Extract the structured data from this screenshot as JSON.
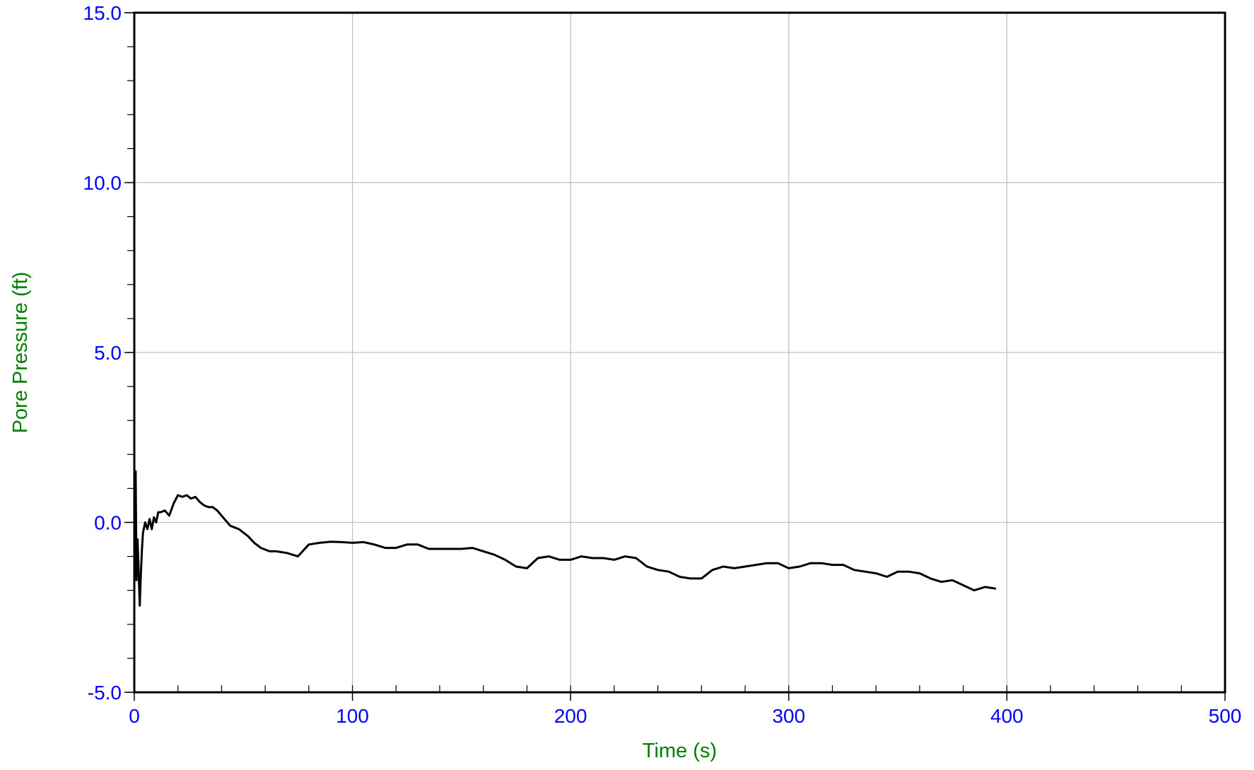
{
  "chart_data": {
    "type": "line",
    "title": "",
    "xlabel": "Time (s)",
    "ylabel": "Pore Pressure (ft)",
    "xlim": [
      0,
      500
    ],
    "ylim": [
      -5.0,
      15.0
    ],
    "x_ticks": [
      0,
      100,
      200,
      300,
      400,
      500
    ],
    "x_tick_labels": [
      "0",
      "100",
      "200",
      "300",
      "400",
      "500"
    ],
    "y_ticks": [
      -5.0,
      0.0,
      5.0,
      10.0,
      15.0
    ],
    "y_tick_labels": [
      "-5.0",
      "0.0",
      "5.0",
      "10.0",
      "15.0"
    ],
    "x_minor_step": 20,
    "y_minor_step": 1.0,
    "grid": true,
    "colors": {
      "tick_label": "#0000ff",
      "axis_label": "#008000",
      "series": "#000000",
      "grid": "#c0c0c0",
      "frame": "#000000"
    },
    "series": [
      {
        "x": [
          0,
          0.3,
          0.6,
          1.0,
          1.5,
          2.0,
          2.5,
          3.0,
          3.5,
          4.0,
          5.0,
          6.0,
          7.0,
          8.0,
          9.0,
          10.0,
          11.0,
          12.0,
          14.0,
          16.0,
          18.0,
          20.0,
          22.0,
          24.0,
          26.0,
          28.0,
          30.0,
          32.0,
          34.0,
          36.0,
          38.0,
          40.0,
          42.0,
          44.0,
          46.0,
          48.0,
          50.0,
          52.0,
          55.0,
          58.0,
          60.0,
          62.0,
          65.0,
          70.0,
          75.0,
          80.0,
          85.0,
          90.0,
          95.0,
          100.0,
          105.0,
          110.0,
          115.0,
          120.0,
          125.0,
          130.0,
          135.0,
          140.0,
          145.0,
          150.0,
          155.0,
          160.0,
          165.0,
          170.0,
          175.0,
          180.0,
          185.0,
          190.0,
          195.0,
          200.0,
          205.0,
          210.0,
          215.0,
          220.0,
          225.0,
          230.0,
          235.0,
          240.0,
          245.0,
          250.0,
          255.0,
          260.0,
          265.0,
          270.0,
          275.0,
          280.0,
          285.0,
          290.0,
          295.0,
          300.0,
          305.0,
          310.0,
          315.0,
          320.0,
          325.0,
          330.0,
          335.0,
          340.0,
          345.0,
          350.0,
          355.0,
          360.0,
          365.0,
          370.0,
          375.0,
          380.0,
          385.0,
          390.0,
          395.0
        ],
        "y": [
          1.8,
          -0.8,
          1.5,
          -1.7,
          -0.5,
          -1.5,
          -2.45,
          -1.5,
          -0.8,
          -0.3,
          0.0,
          -0.2,
          0.1,
          -0.2,
          0.15,
          0.0,
          0.3,
          0.3,
          0.35,
          0.2,
          0.55,
          0.8,
          0.75,
          0.8,
          0.7,
          0.75,
          0.6,
          0.5,
          0.45,
          0.45,
          0.35,
          0.2,
          0.05,
          -0.1,
          -0.15,
          -0.2,
          -0.3,
          -0.4,
          -0.6,
          -0.75,
          -0.8,
          -0.85,
          -0.85,
          -0.9,
          -1.0,
          -0.65,
          -0.6,
          -0.57,
          -0.58,
          -0.6,
          -0.58,
          -0.65,
          -0.75,
          -0.75,
          -0.65,
          -0.65,
          -0.78,
          -0.78,
          -0.78,
          -0.78,
          -0.75,
          -0.85,
          -0.95,
          -1.1,
          -1.3,
          -1.35,
          -1.05,
          -1.0,
          -1.1,
          -1.1,
          -1.0,
          -1.05,
          -1.05,
          -1.1,
          -1.0,
          -1.05,
          -1.3,
          -1.4,
          -1.45,
          -1.6,
          -1.65,
          -1.65,
          -1.4,
          -1.3,
          -1.35,
          -1.3,
          -1.25,
          -1.2,
          -1.2,
          -1.35,
          -1.3,
          -1.2,
          -1.2,
          -1.25,
          -1.25,
          -1.4,
          -1.45,
          -1.5,
          -1.6,
          -1.45,
          -1.45,
          -1.5,
          -1.65,
          -1.75,
          -1.7,
          -1.85,
          -2.0,
          -1.9,
          -1.95
        ]
      }
    ]
  }
}
